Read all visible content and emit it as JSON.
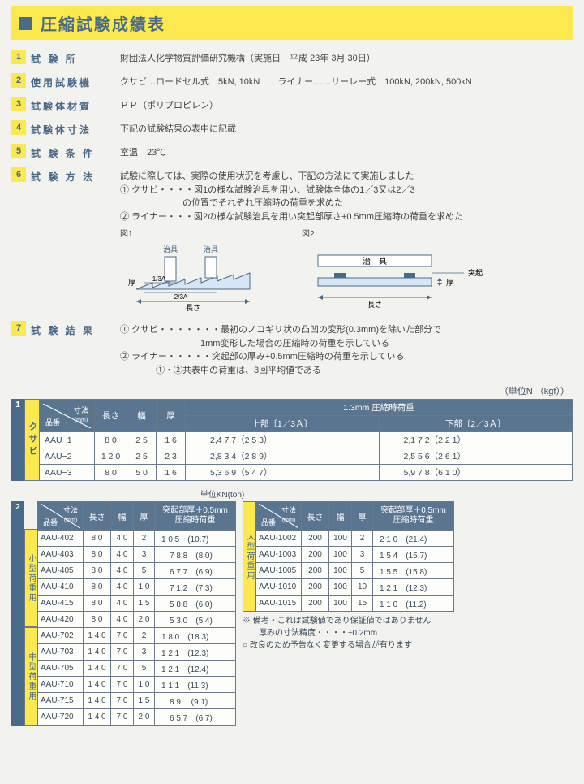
{
  "title": "圧縮試験成績表",
  "meta": [
    {
      "n": "1",
      "label": "試 験 所",
      "val": "財団法人化学物質評価研究機構（実施日　平成 23年 3月 30日）"
    },
    {
      "n": "2",
      "label": "使用試験機",
      "val": "クサビ…ロードセル式　5kN, 10kN　　ライナー……リーレー式　100kN, 200kN, 500kN"
    },
    {
      "n": "3",
      "label": "試験体材質",
      "val": "ＰＰ（ポリプロピレン）"
    },
    {
      "n": "4",
      "label": "試験体寸法",
      "val": "下記の試験結果の表中に記載"
    },
    {
      "n": "5",
      "label": "試 験 条 件",
      "val": "室温　23℃"
    }
  ],
  "method": {
    "n": "6",
    "label": "試 験 方 法",
    "intro": "試験に際しては、実際の使用状況を考慮し、下記の方法にて実施しました",
    "lines": [
      "① クサビ・・・・図1の様な試験治具を用い、試験体全体の1／3又は2／3",
      "　　　　　　　の位置でそれぞれ圧縮時の荷重を求めた",
      "② ライナー・・・図2の様な試験治具を用い突起部厚さ+0.5mm圧縮時の荷重を求めた"
    ],
    "fig1_label": "図1",
    "fig2_label": "図2",
    "fig1_jig": "治具",
    "fig_len": "長さ",
    "fig_th": "厚",
    "fig1_a13": "1/3A",
    "fig1_a23": "2/3A",
    "fig2_jig": "治　具",
    "fig2_protrusion": "突起"
  },
  "result": {
    "n": "7",
    "label": "試 験 結 果",
    "lines": [
      "① クサビ・・・・・・・最初のノコギリ状の凸凹の変形(0.3mm)を除いた部分で",
      "　　　　　　　　　1mm変形した場合の圧縮時の荷重を示している",
      "② ライナー・・・・・突起部の厚み+0.5mm圧縮時の荷重を示している",
      "　　　　①・②共表中の荷重は、3回平均値である"
    ]
  },
  "unit_note": "（単位N （kgf））",
  "t1": {
    "idx": "1",
    "side": "クサビ",
    "head_dim": "寸法",
    "head_dim_unit": "(mm)",
    "head_part": "品番",
    "h_len": "長さ",
    "h_w": "幅",
    "h_th": "厚",
    "h_load": "1.3mm 圧縮時荷重",
    "h_top": "上部〔1／3Ａ〕",
    "h_bot": "下部〔2／3Ａ〕",
    "rows": [
      {
        "p": "AAU−1",
        "l": "8 0",
        "w": "2 5",
        "t": "1 6",
        "a": "2,4 7 7（2 5 3）",
        "b": "2,1 7 2（2 2 1）"
      },
      {
        "p": "AAU−2",
        "l": "1 2 0",
        "w": "2 5",
        "t": "2 3",
        "a": "2,8 3 4（2 8 9）",
        "b": "2,5 5 6（2 6 1）"
      },
      {
        "p": "AAU−3",
        "l": "8 0",
        "w": "5 0",
        "t": "1 6",
        "a": "5,3 6 9（5 4 7）",
        "b": "5,9 7 8（6 1 0）"
      }
    ]
  },
  "t2": {
    "idx": "2",
    "unit": "単位KN(ton)",
    "head_dim": "寸法",
    "head_dim_unit": "(mm)",
    "head_part": "品番",
    "h_len": "長さ",
    "h_w": "幅",
    "h_th": "厚",
    "h_load": "突起部厚＋0.5mm\n圧縮時荷重",
    "side_small": "小型荷重用",
    "side_mid": "中型荷重用",
    "side_big": "大型荷重用",
    "left": [
      {
        "g": 0,
        "p": "AAU-402",
        "l": "8 0",
        "w": "4 0",
        "t": "2",
        "v": "1 0 5　(10.7)"
      },
      {
        "g": 0,
        "p": "AAU-403",
        "l": "8 0",
        "w": "4 0",
        "t": "3",
        "v": "　7 8.8　(8.0)"
      },
      {
        "g": 0,
        "p": "AAU-405",
        "l": "8 0",
        "w": "4 0",
        "t": "5",
        "v": "　6 7.7　(6.9)"
      },
      {
        "g": 0,
        "p": "AAU-410",
        "l": "8 0",
        "w": "4 0",
        "t": "1 0",
        "v": "　7 1.2　(7.3)"
      },
      {
        "g": 0,
        "p": "AAU-415",
        "l": "8 0",
        "w": "4 0",
        "t": "1 5",
        "v": "　5 8.8　(6.0)"
      },
      {
        "g": 0,
        "p": "AAU-420",
        "l": "8 0",
        "w": "4 0",
        "t": "2 0",
        "v": "　5 3.0　(5.4)"
      },
      {
        "g": 1,
        "p": "AAU-702",
        "l": "1 4 0",
        "w": "7 0",
        "t": "2",
        "v": "1 8 0　(18.3)"
      },
      {
        "g": 1,
        "p": "AAU-703",
        "l": "1 4 0",
        "w": "7 0",
        "t": "3",
        "v": "1 2 1　(12.3)"
      },
      {
        "g": 1,
        "p": "AAU-705",
        "l": "1 4 0",
        "w": "7 0",
        "t": "5",
        "v": "1 2 1　(12.4)"
      },
      {
        "g": 1,
        "p": "AAU-710",
        "l": "1 4 0",
        "w": "7 0",
        "t": "1 0",
        "v": "1 1 1　(11.3)"
      },
      {
        "g": 1,
        "p": "AAU-715",
        "l": "1 4 0",
        "w": "7 0",
        "t": "1 5",
        "v": "　8 9　 (9.1)"
      },
      {
        "g": 1,
        "p": "AAU-720",
        "l": "1 4 0",
        "w": "7 0",
        "t": "2 0",
        "v": "　6 5.7　(6.7)"
      }
    ],
    "right": [
      {
        "p": "AAU-1002",
        "l": "200",
        "w": "100",
        "t": "2",
        "v": "2 1 0　(21.4)"
      },
      {
        "p": "AAU-1003",
        "l": "200",
        "w": "100",
        "t": "3",
        "v": "1 5 4　(15.7)"
      },
      {
        "p": "AAU-1005",
        "l": "200",
        "w": "100",
        "t": "5",
        "v": "1 5 5　(15.8)"
      },
      {
        "p": "AAU-1010",
        "l": "200",
        "w": "100",
        "t": "10",
        "v": "1 2 1　(12.3)"
      },
      {
        "p": "AAU-1015",
        "l": "200",
        "w": "100",
        "t": "15",
        "v": "1 1 0　(11.2)"
      }
    ]
  },
  "notes": [
    "※ 備考・これは試験値であり保証値ではありません",
    "　　厚みの寸法精度・・・・±0.2mm",
    "○ 改良のため予告なく変更する場合が有ります"
  ]
}
